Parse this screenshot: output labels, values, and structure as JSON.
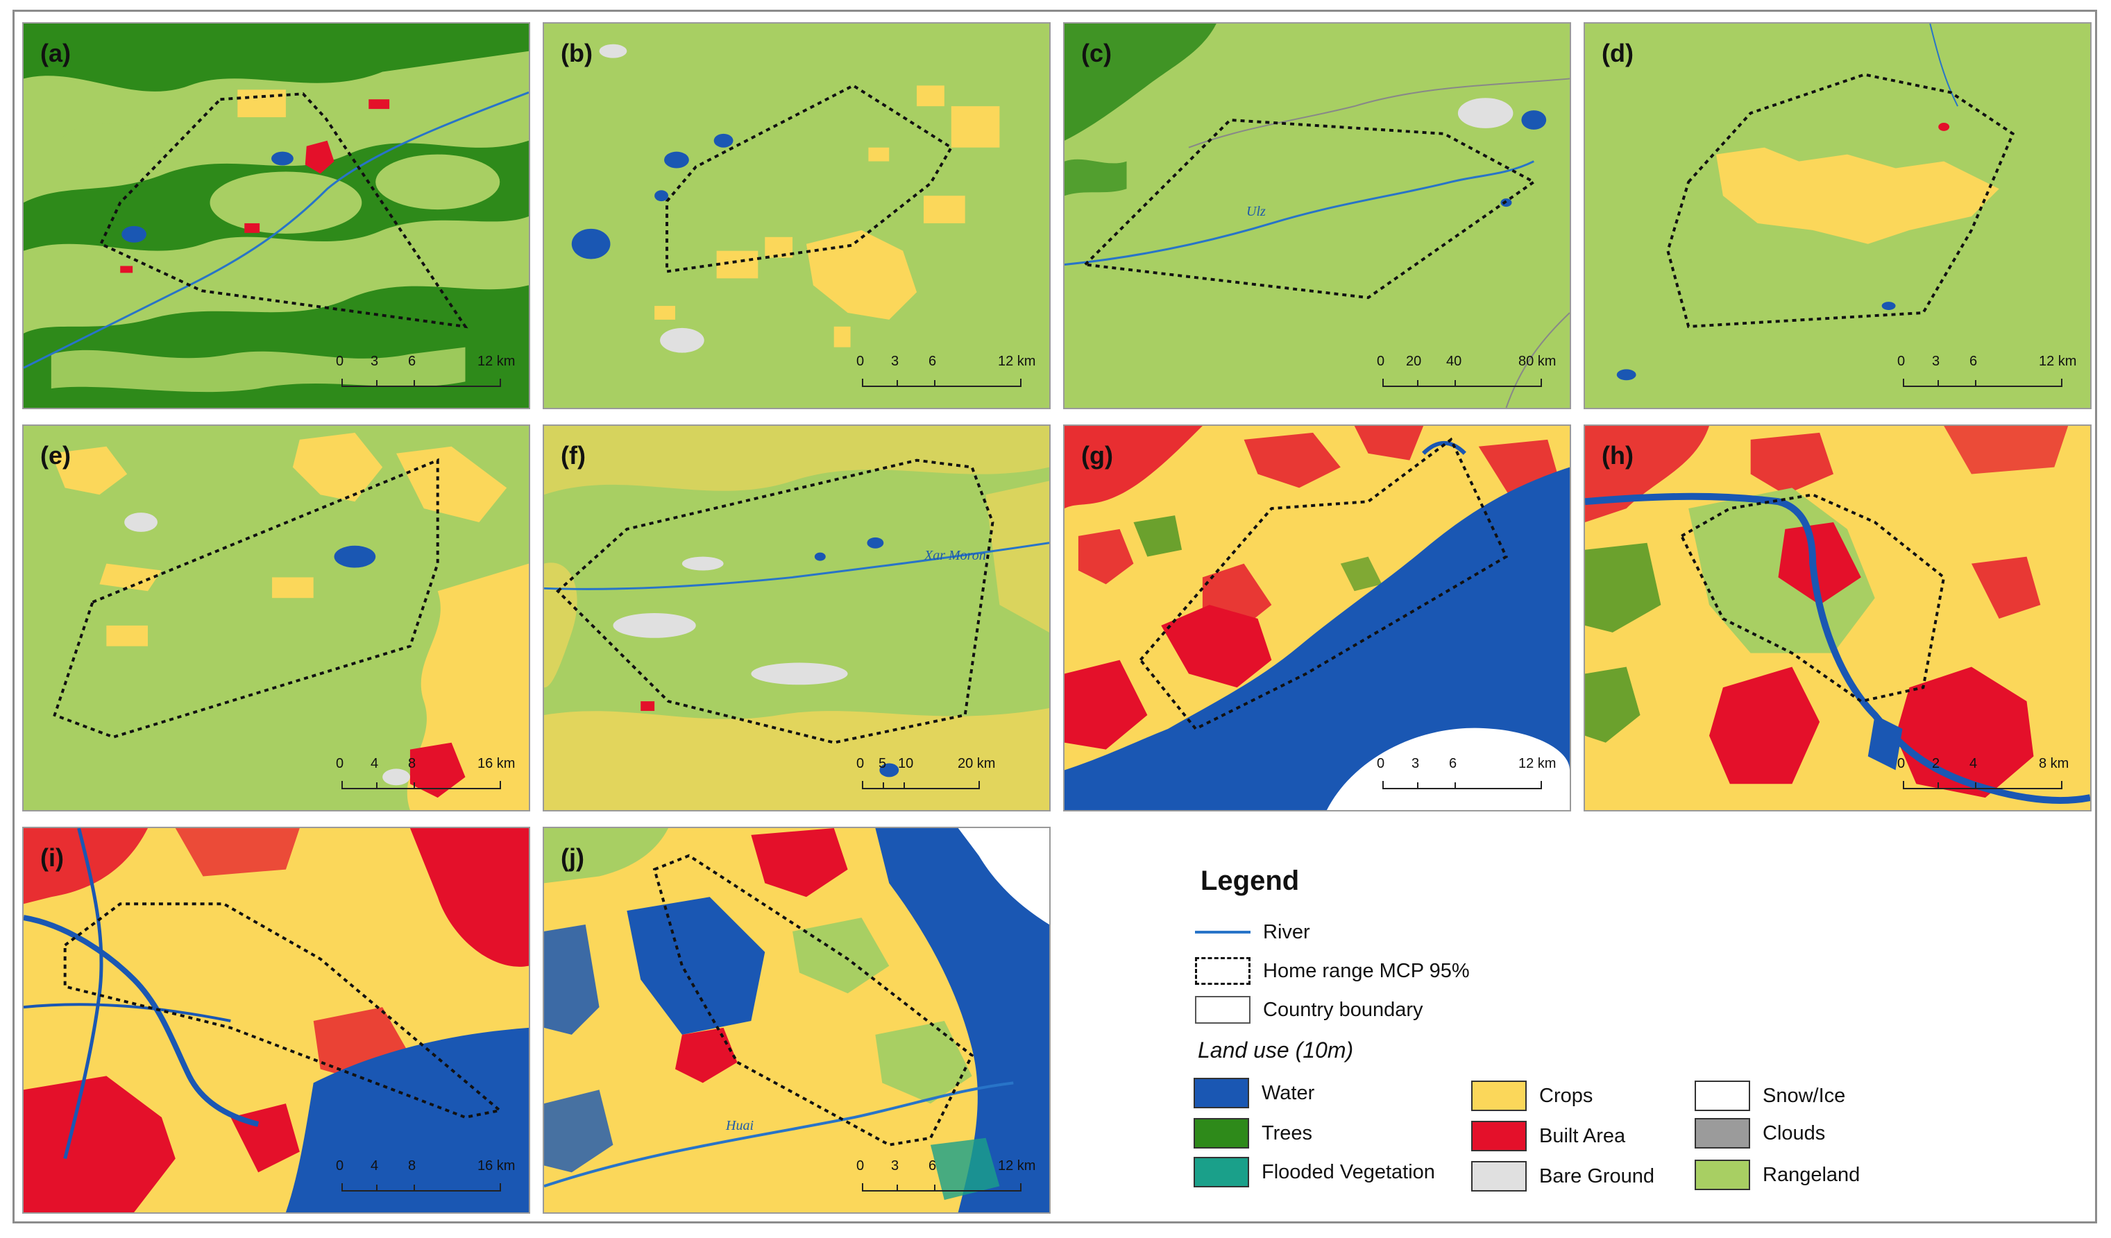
{
  "colors": {
    "water": "#1a57b3",
    "trees": "#2e8a1a",
    "flooded_vegetation": "#1aa08a",
    "crops": "#fbd75a",
    "built_area": "#e4102a",
    "bare_ground": "#e0e0e0",
    "snow_ice": "#ffffff",
    "clouds": "#9b9b9b",
    "rangeland": "#a8cf63",
    "river": "#2874c8"
  },
  "panels": [
    {
      "label": "(a)",
      "scale": [
        "0",
        "3",
        "6",
        "12 km"
      ]
    },
    {
      "label": "(b)",
      "scale": [
        "0",
        "3",
        "6",
        "12 km"
      ]
    },
    {
      "label": "(c)",
      "scale": [
        "0",
        "20",
        "40",
        "80 km"
      ],
      "river_label": "Ulz"
    },
    {
      "label": "(d)",
      "scale": [
        "0",
        "3",
        "6",
        "12 km"
      ]
    },
    {
      "label": "(e)",
      "scale": [
        "0",
        "4",
        "8",
        "16 km"
      ]
    },
    {
      "label": "(f)",
      "scale": [
        "0",
        "5",
        "10",
        "20 km"
      ],
      "river_label": "Xar Moron"
    },
    {
      "label": "(g)",
      "scale": [
        "0",
        "3",
        "6",
        "12 km"
      ]
    },
    {
      "label": "(h)",
      "scale": [
        "0",
        "2",
        "4",
        "8 km"
      ]
    },
    {
      "label": "(i)",
      "scale": [
        "0",
        "4",
        "8",
        "16 km"
      ]
    },
    {
      "label": "(j)",
      "scale": [
        "0",
        "3",
        "6",
        "12 km"
      ],
      "river_label": "Huai"
    }
  ],
  "legend": {
    "title": "Legend",
    "lines": [
      {
        "key": "river",
        "label": "River"
      },
      {
        "key": "mcp",
        "label": "Home range MCP 95%"
      },
      {
        "key": "country",
        "label": "Country boundary"
      }
    ],
    "land_use_title": "Land use (10m)",
    "classes": [
      {
        "key": "water",
        "label": "Water"
      },
      {
        "key": "trees",
        "label": "Trees"
      },
      {
        "key": "flooded_vegetation",
        "label": "Flooded Vegetation"
      },
      {
        "key": "crops",
        "label": "Crops"
      },
      {
        "key": "built_area",
        "label": "Built Area"
      },
      {
        "key": "bare_ground",
        "label": "Bare Ground"
      },
      {
        "key": "snow_ice",
        "label": "Snow/Ice"
      },
      {
        "key": "clouds",
        "label": "Clouds"
      },
      {
        "key": "rangeland",
        "label": "Rangeland"
      }
    ]
  }
}
